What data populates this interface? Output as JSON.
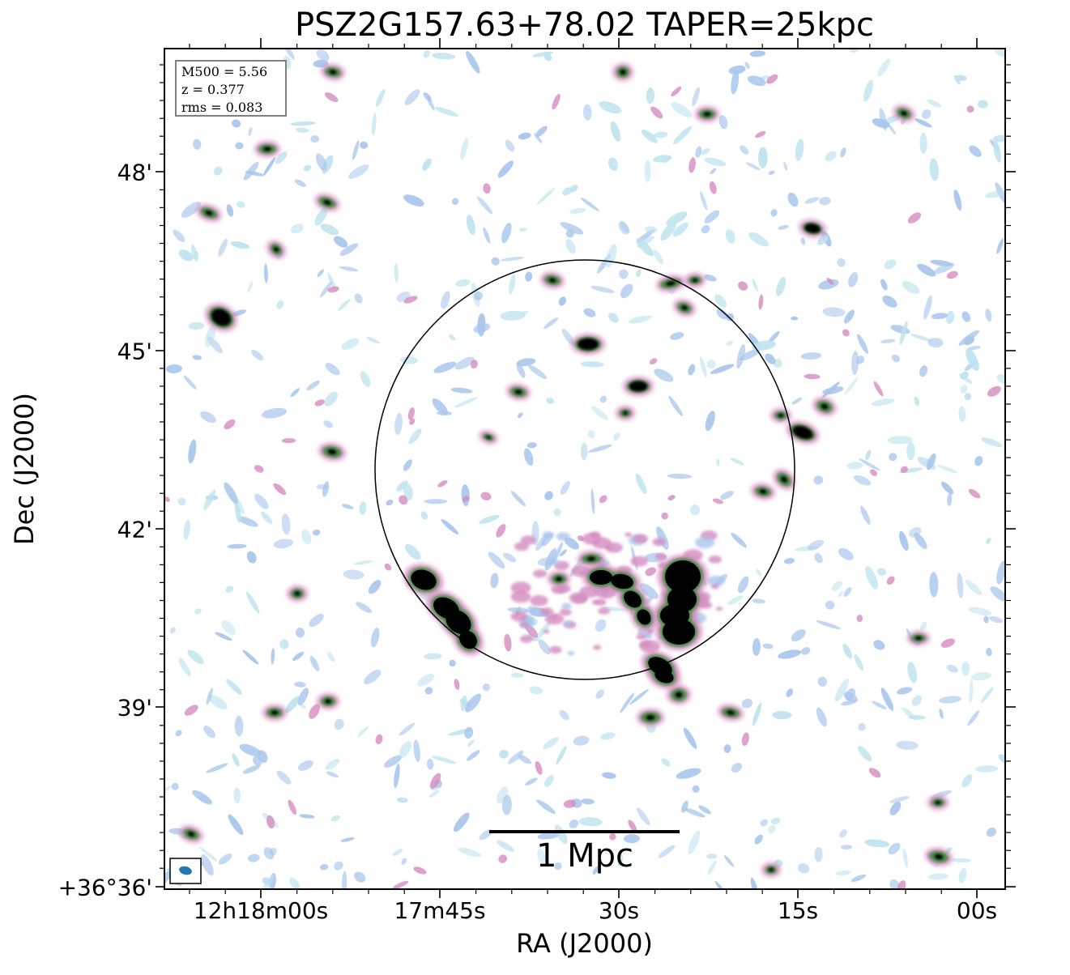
{
  "title": "PSZ2G157.63+78.02 TAPER=25kpc",
  "axes": {
    "xlabel": "RA (J2000)",
    "ylabel": "Dec (J2000)",
    "xticks": [
      "12h18m00s",
      "17m45s",
      "30s",
      "15s",
      "00s"
    ],
    "yticks": [
      "48'",
      "45'",
      "42'",
      "39'",
      "+36°36'"
    ]
  },
  "info": {
    "line1": "M500 = 5.56",
    "line2": "z = 0.377",
    "line3": "rms = 0.083"
  },
  "scalebar": {
    "label": "1 Mpc"
  },
  "colors": {
    "faint": "#a9c6ec",
    "pale_cyan": "#bfe3ee",
    "pink": "#d48cc0",
    "green": "#3e8c3e",
    "core": "#000000",
    "beam": "#1f77b4"
  },
  "icons": {
    "beam": "beam-ellipse-icon"
  }
}
